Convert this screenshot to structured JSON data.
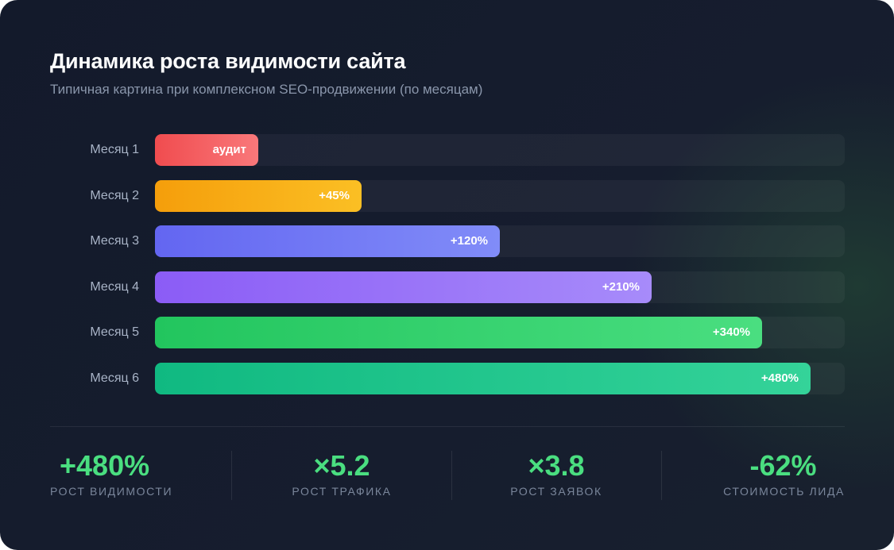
{
  "title": "Динамика роста видимости сайта",
  "subtitle": "Типичная картина при комплексном SEO-продвижении (по месяцам)",
  "chart_data": {
    "type": "bar",
    "orientation": "horizontal",
    "categories": [
      "Месяц 1",
      "Месяц 2",
      "Месяц 3",
      "Месяц 4",
      "Месяц 5",
      "Месяц 6"
    ],
    "values": [
      15,
      30,
      50,
      72,
      88,
      95
    ],
    "value_unit": "percent of track",
    "data_labels": [
      "аудит",
      "+45%",
      "+120%",
      "+210%",
      "+340%",
      "+480%"
    ],
    "xlim": [
      0,
      100
    ],
    "grid": false,
    "bar_colors": [
      [
        "#f04c4f",
        "#f9787a"
      ],
      [
        "#f59e0b",
        "#fbbf24"
      ],
      [
        "#6366f1",
        "#818cf8"
      ],
      [
        "#8b5cf6",
        "#a78bfa"
      ],
      [
        "#22c55e",
        "#4ade80"
      ],
      [
        "#10b981",
        "#34d399"
      ]
    ]
  },
  "stats": [
    {
      "value": "+480%",
      "label": "РОСТ ВИДИМОСТИ"
    },
    {
      "value": "×5.2",
      "label": "РОСТ ТРАФИКА"
    },
    {
      "value": "×3.8",
      "label": "РОСТ ЗАЯВОК"
    },
    {
      "value": "-62%",
      "label": "СТОИМОСТЬ ЛИДА"
    }
  ],
  "colors": {
    "accent": "#4ade80",
    "background": "#141b2c",
    "title": "#ffffff",
    "muted": "#8a96ab"
  }
}
